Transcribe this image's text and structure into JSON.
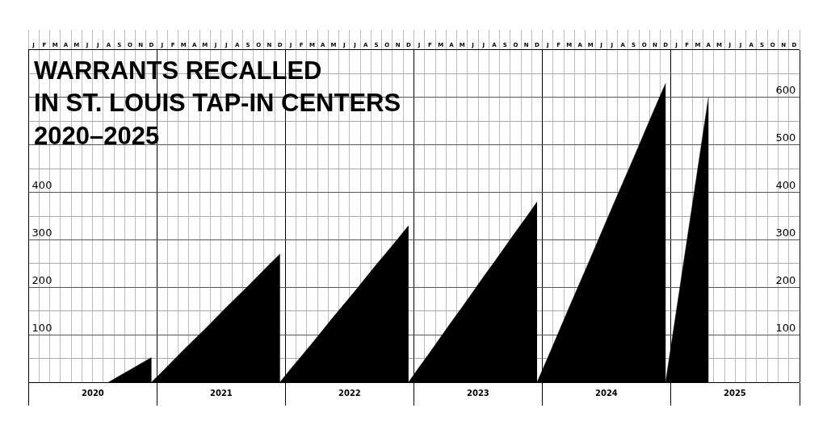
{
  "chart_data": {
    "type": "area",
    "title": "WARRANTS RECALLED\nIN ST. LOUIS TAP-IN CENTERS\n2020–2025",
    "categories": [
      "J",
      "F",
      "M",
      "A",
      "M",
      "J",
      "J",
      "A",
      "S",
      "O",
      "N",
      "D",
      "J",
      "F",
      "M",
      "A",
      "M",
      "J",
      "J",
      "A",
      "S",
      "O",
      "N",
      "D",
      "J",
      "F",
      "M",
      "A",
      "M",
      "J",
      "J",
      "A",
      "S",
      "O",
      "N",
      "D",
      "J",
      "F",
      "M",
      "A",
      "M",
      "J",
      "J",
      "A",
      "S",
      "O",
      "N",
      "D",
      "J",
      "F",
      "M",
      "A",
      "M",
      "J",
      "J",
      "A",
      "S",
      "O",
      "N",
      "D",
      "J",
      "F",
      "M",
      "A",
      "M",
      "J",
      "J",
      "A",
      "S",
      "O",
      "N",
      "D"
    ],
    "series": [
      {
        "color": "#000000",
        "values": [
          null,
          null,
          null,
          null,
          null,
          null,
          null,
          0,
          13,
          26,
          39,
          52,
          null,
          null,
          null,
          null,
          null,
          null,
          null,
          null,
          null,
          null,
          null,
          null,
          null,
          null,
          null,
          null,
          null,
          null,
          null,
          null,
          null,
          null,
          null,
          null,
          null,
          null,
          null,
          null,
          null,
          null,
          null,
          null,
          null,
          null,
          null,
          null,
          null,
          null,
          null,
          null,
          null,
          null,
          null,
          null,
          null,
          null,
          null,
          null,
          null,
          null,
          null,
          null,
          null,
          null,
          null,
          null,
          null,
          null,
          null,
          null
        ]
      },
      {
        "color": "#000000",
        "values": [
          null,
          null,
          null,
          null,
          null,
          null,
          null,
          null,
          null,
          null,
          null,
          0,
          22,
          45,
          68,
          90,
          112,
          135,
          158,
          180,
          202,
          225,
          248,
          270,
          null,
          null,
          null,
          null,
          null,
          null,
          null,
          null,
          null,
          null,
          null,
          null,
          null,
          null,
          null,
          null,
          null,
          null,
          null,
          null,
          null,
          null,
          null,
          null,
          null,
          null,
          null,
          null,
          null,
          null,
          null,
          null,
          null,
          null,
          null,
          null,
          null,
          null,
          null,
          null,
          null,
          null,
          null,
          null,
          null,
          null,
          null,
          null
        ]
      },
      {
        "color": "#000000",
        "values": [
          null,
          null,
          null,
          null,
          null,
          null,
          null,
          null,
          null,
          null,
          null,
          null,
          null,
          null,
          null,
          null,
          null,
          null,
          null,
          null,
          null,
          null,
          null,
          0,
          28,
          55,
          82,
          110,
          138,
          165,
          192,
          220,
          248,
          275,
          302,
          330,
          null,
          null,
          null,
          null,
          null,
          null,
          null,
          null,
          null,
          null,
          null,
          null,
          null,
          null,
          null,
          null,
          null,
          null,
          null,
          null,
          null,
          null,
          null,
          null,
          null,
          null,
          null,
          null,
          null,
          null,
          null,
          null,
          null,
          null,
          null,
          null
        ]
      },
      {
        "color": "#000000",
        "values": [
          null,
          null,
          null,
          null,
          null,
          null,
          null,
          null,
          null,
          null,
          null,
          null,
          null,
          null,
          null,
          null,
          null,
          null,
          null,
          null,
          null,
          null,
          null,
          null,
          null,
          null,
          null,
          null,
          null,
          null,
          null,
          null,
          null,
          null,
          null,
          0,
          32,
          63,
          95,
          127,
          158,
          190,
          222,
          253,
          285,
          317,
          348,
          380,
          null,
          null,
          null,
          null,
          null,
          null,
          null,
          null,
          null,
          null,
          null,
          null,
          null,
          null,
          null,
          null,
          null,
          null,
          null,
          null,
          null,
          null,
          null,
          null
        ]
      },
      {
        "color": "#000000",
        "values": [
          null,
          null,
          null,
          null,
          null,
          null,
          null,
          null,
          null,
          null,
          null,
          null,
          null,
          null,
          null,
          null,
          null,
          null,
          null,
          null,
          null,
          null,
          null,
          null,
          null,
          null,
          null,
          null,
          null,
          null,
          null,
          null,
          null,
          null,
          null,
          null,
          null,
          null,
          null,
          null,
          null,
          null,
          null,
          null,
          null,
          null,
          null,
          0,
          52,
          105,
          158,
          210,
          262,
          315,
          368,
          420,
          472,
          525,
          578,
          630,
          null,
          null,
          null,
          null,
          null,
          null,
          null,
          null,
          null,
          null,
          null,
          null
        ]
      },
      {
        "color": "#000000",
        "values": [
          null,
          null,
          null,
          null,
          null,
          null,
          null,
          null,
          null,
          null,
          null,
          null,
          null,
          null,
          null,
          null,
          null,
          null,
          null,
          null,
          null,
          null,
          null,
          null,
          null,
          null,
          null,
          null,
          null,
          null,
          null,
          null,
          null,
          null,
          null,
          null,
          null,
          null,
          null,
          null,
          null,
          null,
          null,
          null,
          null,
          null,
          null,
          null,
          null,
          null,
          null,
          null,
          null,
          null,
          null,
          null,
          null,
          null,
          null,
          0,
          150,
          300,
          450,
          600,
          null,
          null,
          null,
          null,
          null,
          null,
          null,
          null
        ]
      }
    ],
    "annotations": [
      "2020",
      "2021",
      "2022",
      "2023",
      "2024",
      "2025"
    ],
    "ylim": [
      0,
      700
    ],
    "yticks": [
      100,
      200,
      300,
      400
    ],
    "y2lim": [
      0,
      700
    ],
    "y2ticks": [
      100,
      200,
      300,
      400,
      500,
      600
    ],
    "grid": true
  }
}
